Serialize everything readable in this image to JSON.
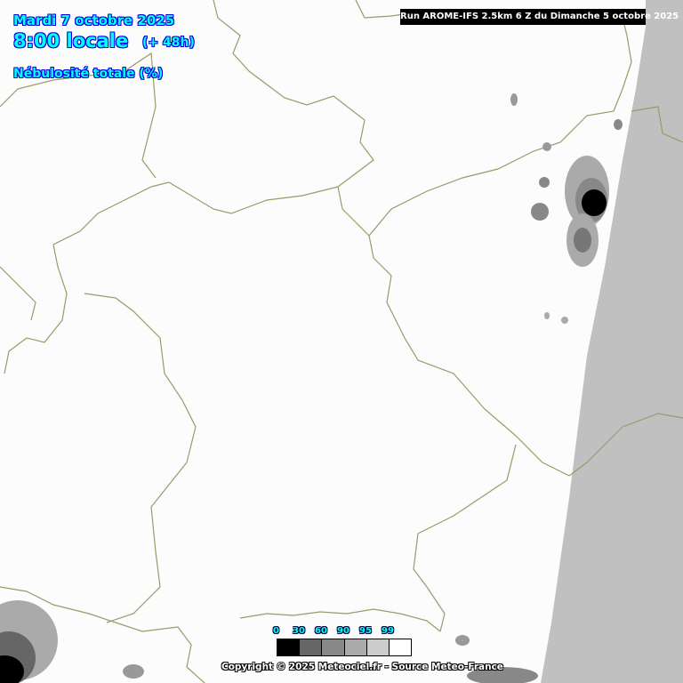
{
  "header": {
    "date": "Mardi 7 octobre 2025",
    "hour": "8:00 locale",
    "lead": "(+ 48h)",
    "parameter": "Nébulosité totale (%)"
  },
  "run_label": "Run AROME-IFS 2.5km 6 Z du Dimanche 5 octobre 2025",
  "legend": {
    "ticks": [
      "0",
      "30",
      "60",
      "90",
      "95",
      "99"
    ],
    "colors": [
      "#000000",
      "#666666",
      "#888888",
      "#aaaaaa",
      "#cccccc",
      "#ffffff"
    ]
  },
  "copyright": "Copyright © 2025 Meteociel.fr - Source Meteo-France",
  "colors": {
    "border": "#9a9a6a",
    "out_of_domain": "#c0c0c0",
    "title_fill": "#00ffff",
    "title_outline": "#0000e0"
  }
}
